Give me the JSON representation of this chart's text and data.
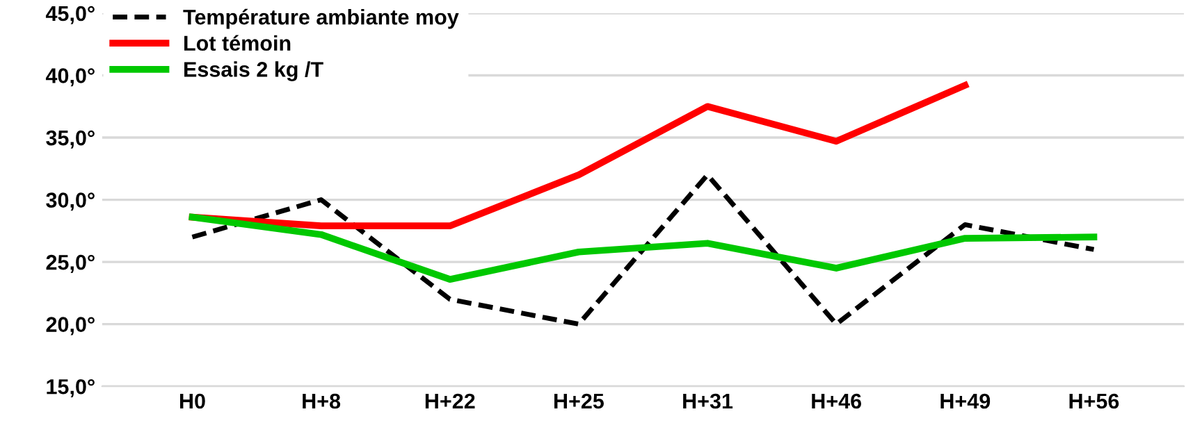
{
  "chart_data": {
    "type": "line",
    "categories": [
      "H0",
      "H+8",
      "H+22",
      "H+25",
      "H+31",
      "H+46",
      "H+49",
      "H+56"
    ],
    "series": [
      {
        "name": "Température ambiante moy",
        "color": "#000000",
        "line_style": "dashed",
        "values": [
          27,
          30,
          22,
          20,
          32,
          20,
          28,
          26
        ]
      },
      {
        "name": "Lot témoin",
        "color": "#ff0000",
        "line_style": "solid",
        "values": [
          28.6,
          27.9,
          27.9,
          32,
          37.5,
          34.7,
          39.2,
          null
        ]
      },
      {
        "name": "Essais 2 kg /T",
        "color": "#00c800",
        "line_style": "solid",
        "values": [
          28.6,
          27.2,
          23.6,
          25.8,
          26.5,
          24.5,
          26.9,
          27.0
        ]
      }
    ],
    "ylim": [
      15,
      45
    ],
    "yticks": [
      {
        "value": 15,
        "label": "15,0°"
      },
      {
        "value": 20,
        "label": "20,0°"
      },
      {
        "value": 25,
        "label": "25,0°"
      },
      {
        "value": 30,
        "label": "30,0°"
      },
      {
        "value": 35,
        "label": "35,0°"
      },
      {
        "value": 40,
        "label": "40,0°"
      },
      {
        "value": 45,
        "label": "45,0°"
      }
    ],
    "grid": "y",
    "legend": "top left",
    "marker": "none"
  }
}
